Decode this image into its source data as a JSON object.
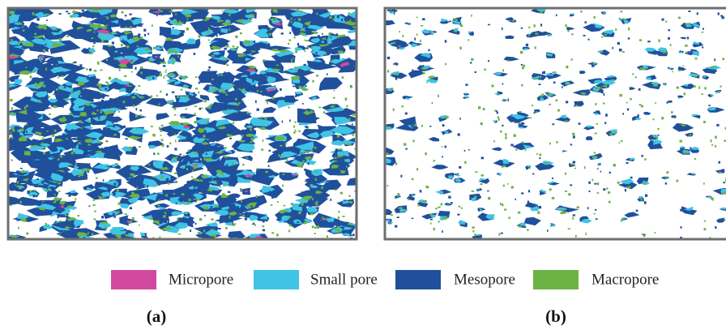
{
  "legend": [
    {
      "label": "Micropore",
      "color": "#d24a9f"
    },
    {
      "label": "Small pore",
      "color": "#3fc4e6"
    },
    {
      "label": "Mesopore",
      "color": "#20509b"
    },
    {
      "label": "Macropore",
      "color": "#6cb343"
    }
  ],
  "panels": [
    {
      "label": "(a)"
    },
    {
      "label": "(b)"
    }
  ]
}
